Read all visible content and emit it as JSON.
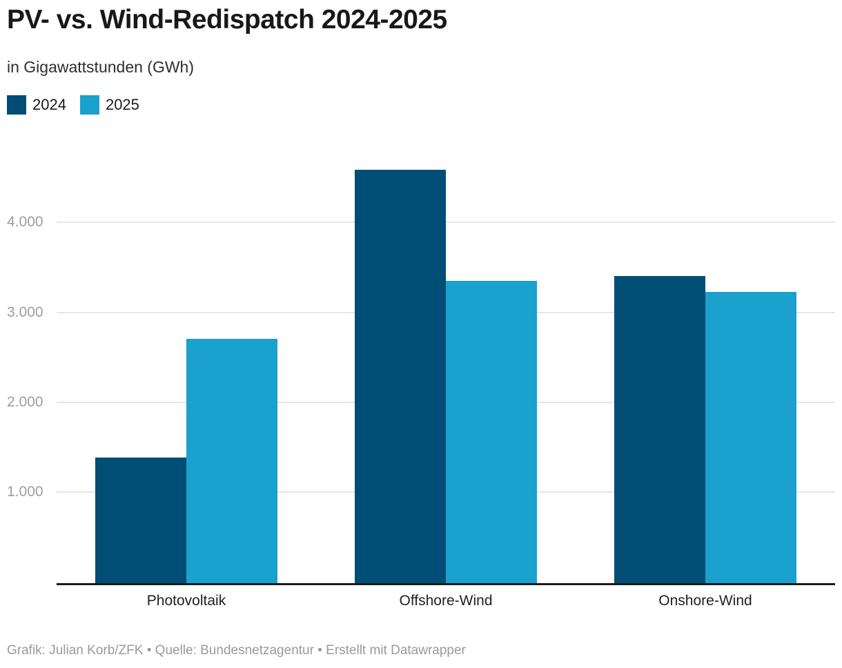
{
  "header": {
    "title": "PV- vs. Wind-Redispatch 2024-2025",
    "subtitle": "in Gigawattstunden (GWh)"
  },
  "footer": {
    "text": "Grafik: Julian Korb/ZFK • Quelle: Bundesnetzagentur • Erstellt mit Datawrapper"
  },
  "colors": {
    "series_2024": "#004e75",
    "series_2025": "#1aa1ce",
    "axis": "#1a1a1a",
    "gridline": "#e6e6e6",
    "tick_label": "#9e9e9e"
  },
  "chart_data": {
    "type": "bar",
    "title": "PV- vs. Wind-Redispatch 2024-2025",
    "subtitle": "in Gigawattstunden (GWh)",
    "categories": [
      "Photovoltaik",
      "Offshore-Wind",
      "Onshore-Wind"
    ],
    "series": [
      {
        "name": "2024",
        "color": "#004e75",
        "values": [
          1385,
          4585,
          3400
        ]
      },
      {
        "name": "2025",
        "color": "#1aa1ce",
        "values": [
          2705,
          3350,
          3225
        ]
      }
    ],
    "xlabel": "",
    "ylabel": "GWh",
    "ylim": [
      0,
      4800
    ],
    "yticks": [
      1000,
      2000,
      3000,
      4000
    ],
    "ytick_labels": [
      "1.000",
      "2.000",
      "3.000",
      "4.000"
    ],
    "grid": true,
    "legend_position": "top-left"
  }
}
